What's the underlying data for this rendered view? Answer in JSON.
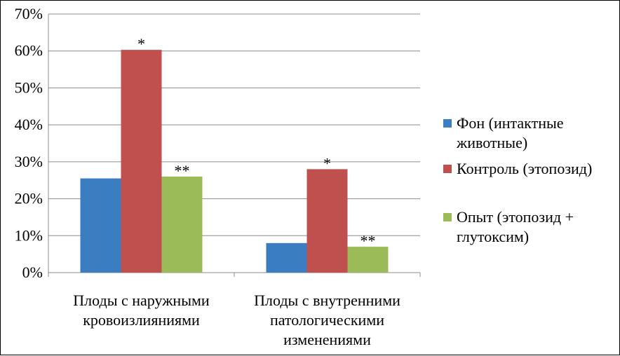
{
  "chart_data": {
    "type": "bar",
    "categories": [
      [
        "Плоды с наружными",
        "кровоизлияниями"
      ],
      [
        "Плоды с внутренними",
        "патологическими",
        "изменениями"
      ]
    ],
    "series": [
      {
        "name": [
          "Фон (интактные",
          "животные)"
        ],
        "color": "#3a7dc1",
        "values": [
          25.5,
          8
        ]
      },
      {
        "name": [
          "Контроль (этопозид)"
        ],
        "color": "#c0504d",
        "values": [
          60.3,
          28
        ]
      },
      {
        "name": [
          "Опыт (этопозид +",
          "глутоксим)"
        ],
        "color": "#9bbb59",
        "values": [
          26,
          7
        ]
      }
    ],
    "annotations": [
      [
        "",
        "*",
        "**"
      ],
      [
        "",
        "*",
        "**"
      ]
    ],
    "ylim": [
      0,
      70
    ],
    "yticks": [
      "0%",
      "10%",
      "20%",
      "30%",
      "40%",
      "50%",
      "60%",
      "70%"
    ],
    "grid": true,
    "legend_position": "right",
    "title": "",
    "xlabel": "",
    "ylabel": ""
  }
}
